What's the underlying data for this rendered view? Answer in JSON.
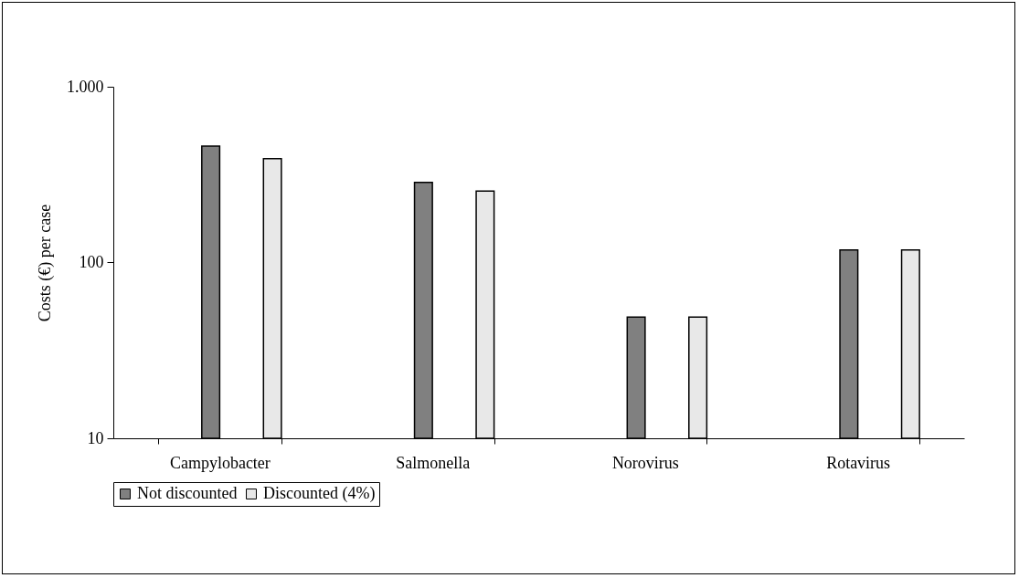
{
  "chart_data": {
    "type": "bar",
    "ylabel": "Costs (€) per case",
    "categories": [
      "Campylobacter",
      "Salmonella",
      "Norovirus",
      "Rotavirus"
    ],
    "series": [
      {
        "name": "Not discounted",
        "color": "#808080",
        "values": [
          460,
          286,
          49,
          118
        ]
      },
      {
        "name": "Discounted (4%)",
        "color": "#e8e8e8",
        "values": [
          390,
          255,
          49,
          118
        ]
      }
    ],
    "log": true,
    "ylim": [
      10,
      1000
    ],
    "yticks": [
      10,
      100,
      {
        "value": 1000,
        "label": "1.000"
      }
    ],
    "grid": false,
    "legend": "bottom"
  }
}
